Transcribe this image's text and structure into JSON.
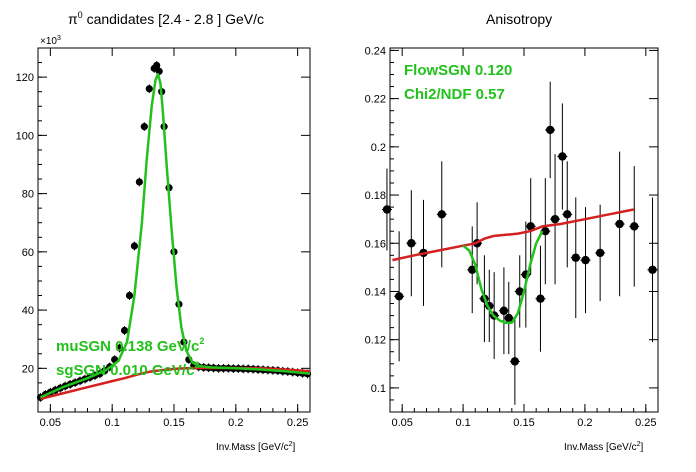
{
  "chart_data": [
    {
      "type": "scatter",
      "title_main": "π",
      "title_sup": "0",
      "title_rest": " candidates   [2.4 - 2.8 ] GeV/c",
      "xlabel": "Inv.Mass  [GeV/c",
      "xlabel_sup": "2",
      "xlabel_end": "]",
      "exponent_label": "×10",
      "exponent_sup": "3",
      "xlim": [
        0.04,
        0.26
      ],
      "ylim": [
        5,
        130
      ],
      "xticks": [
        0.05,
        0.1,
        0.15,
        0.2,
        0.25
      ],
      "xtick_labels": [
        "0.05",
        "0.1",
        "0.15",
        "0.2",
        "0.25"
      ],
      "yticks": [
        20,
        40,
        60,
        80,
        100,
        120
      ],
      "ytick_labels": [
        "20",
        "40",
        "60",
        "80",
        "100",
        "120"
      ],
      "series": [
        {
          "x": [
            0.042,
            0.046,
            0.05,
            0.054,
            0.058,
            0.062,
            0.066,
            0.07,
            0.074,
            0.078,
            0.082,
            0.086,
            0.09,
            0.094,
            0.098,
            0.102,
            0.106,
            0.11,
            0.114,
            0.118,
            0.122,
            0.126,
            0.13,
            0.134,
            0.136,
            0.138,
            0.14,
            0.142,
            0.146,
            0.15,
            0.154,
            0.158,
            0.162,
            0.166,
            0.17,
            0.174,
            0.178,
            0.182,
            0.186,
            0.19,
            0.194,
            0.198,
            0.202,
            0.206,
            0.21,
            0.214,
            0.218,
            0.222,
            0.226,
            0.23,
            0.234,
            0.238,
            0.242,
            0.246,
            0.25,
            0.254,
            0.258
          ],
          "y": [
            10,
            11,
            11.8,
            12.5,
            13.2,
            13.9,
            14.5,
            15.1,
            15.7,
            16.3,
            16.9,
            17.5,
            18.1,
            19.2,
            20.5,
            23,
            27,
            33,
            45,
            62,
            84,
            103,
            116,
            123,
            124,
            122,
            115,
            103,
            82,
            60,
            42,
            29,
            23,
            21,
            20.5,
            20.3,
            20.2,
            20.1,
            20,
            20,
            20,
            19.9,
            19.9,
            19.8,
            19.8,
            19.7,
            19.6,
            19.5,
            19.4,
            19.3,
            19.2,
            19,
            18.9,
            18.7,
            18.5,
            18.3,
            18.1
          ]
        }
      ],
      "fit_lines": [
        {
          "color": "#22c11c",
          "x": [
            0.042,
            0.06,
            0.08,
            0.095,
            0.105,
            0.112,
            0.118,
            0.124,
            0.128,
            0.132,
            0.135,
            0.137,
            0.139,
            0.141,
            0.144,
            0.148,
            0.152,
            0.156,
            0.16,
            0.165,
            0.17,
            0.18,
            0.2,
            0.22,
            0.24,
            0.26
          ],
          "y": [
            10,
            13.5,
            16.6,
            19.4,
            22.5,
            29,
            45,
            70,
            92,
            110,
            119,
            121,
            118,
            108,
            90,
            68,
            48,
            34,
            26,
            22,
            20.8,
            20.3,
            20,
            19.6,
            19,
            18.2
          ]
        },
        {
          "color": "#d42020",
          "x": [
            0.042,
            0.06,
            0.08,
            0.1,
            0.11,
            0.12,
            0.13,
            0.14,
            0.15,
            0.16,
            0.17,
            0.18,
            0.2,
            0.22,
            0.24,
            0.26
          ],
          "y": [
            9.5,
            11.4,
            13.5,
            15.6,
            16.6,
            17.8,
            18.8,
            19.4,
            19.8,
            20,
            20.1,
            20.1,
            20.1,
            20,
            19.6,
            19
          ]
        }
      ],
      "annotations": [
        {
          "label": "muSGN  0.138 GeV/c",
          "sup": "2"
        },
        {
          "label": "sgSGN  0.010 GeV/c",
          "sup": "2"
        }
      ]
    },
    {
      "type": "scatter",
      "title": "Anisotropy",
      "xlabel": "Inv.Mass  [GeV/c",
      "xlabel_sup": "2",
      "xlabel_end": "]",
      "xlim": [
        0.04,
        0.26
      ],
      "ylim": [
        0.09,
        0.241
      ],
      "xticks": [
        0.05,
        0.1,
        0.15,
        0.2,
        0.25
      ],
      "xtick_labels": [
        "0.05",
        "0.1",
        "0.15",
        "0.2",
        "0.25"
      ],
      "yticks": [
        0.1,
        0.12,
        0.14,
        0.16,
        0.18,
        0.2,
        0.22,
        0.24
      ],
      "ytick_labels": [
        "0.1",
        "0.12",
        "0.14",
        "0.16",
        "0.18",
        "0.2",
        "0.22",
        "0.24"
      ],
      "series": [
        {
          "x": [
            0.038,
            0.046,
            0.054,
            0.062,
            0.07,
            0.078,
            0.086,
            0.094,
            0.102,
            0.11,
            0.118,
            0.126,
            0.134,
            0.142,
            0.15,
            0.158,
            0.166,
            0.174,
            0.182,
            0.19,
            0.198,
            0.206,
            0.214,
            0.222,
            0.23,
            0.238,
            0.246,
            0.254
          ],
          "x_note": "",
          "xs": [
            0.038,
            0.0575,
            0.0675,
            0.0815,
            0.0875,
            0.0965,
            0.0885,
            0.1055,
            0.1135,
            0.1185,
            0.1235,
            0.1275,
            0.1325,
            0.1365,
            0.1405,
            0.1445,
            0.1485,
            0.1525,
            0.1565,
            0.1605,
            0.1665,
            0.1715,
            0.1765,
            0.1815,
            0.1865,
            0.1925,
            0.1975,
            0.2025
          ],
          "y_all": [],
          "points": [
            [
              0.0375,
              0.174,
              0.017
            ],
            [
              0.0475,
              0.138,
              0.027
            ],
            [
              0.0575,
              0.16,
              0.022
            ],
            [
              0.0675,
              0.156,
              0.022
            ],
            [
              0.0825,
              0.172,
              0.022
            ],
            [
              0.1075,
              0.149,
              0.018
            ],
            [
              0.1115,
              0.16,
              0.017
            ],
            [
              0.1175,
              0.137,
              0.018
            ],
            [
              0.1215,
              0.134,
              0.015
            ],
            [
              0.1255,
              0.13,
              0.018
            ],
            [
              0.1335,
              0.132,
              0.018
            ],
            [
              0.1375,
              0.129,
              0.015
            ],
            [
              0.1425,
              0.111,
              0.018
            ],
            [
              0.1465,
              0.14,
              0.015
            ],
            [
              0.1515,
              0.147,
              0.022
            ],
            [
              0.1555,
              0.167,
              0.02
            ],
            [
              0.1635,
              0.137,
              0.022
            ],
            [
              0.1675,
              0.165,
              0.022
            ],
            [
              0.1715,
              0.207,
              0.02
            ],
            [
              0.1755,
              0.17,
              0.027
            ],
            [
              0.1815,
              0.196,
              0.022
            ],
            [
              0.1855,
              0.172,
              0.022
            ],
            [
              0.1925,
              0.154,
              0.025
            ],
            [
              0.2005,
              0.153,
              0.022
            ],
            [
              0.2125,
              0.156,
              0.02
            ],
            [
              0.2285,
              0.168,
              0.03
            ],
            [
              0.2405,
              0.167,
              0.025
            ],
            [
              0.2555,
              0.149,
              0.03
            ]
          ]
        }
      ],
      "fit_lines": [
        {
          "color": "#d42020",
          "x": [
            0.042,
            0.06,
            0.08,
            0.1,
            0.11,
            0.118,
            0.125,
            0.135,
            0.145,
            0.155,
            0.165,
            0.18,
            0.2,
            0.22,
            0.24
          ],
          "y": [
            0.153,
            0.155,
            0.157,
            0.159,
            0.16,
            0.162,
            0.163,
            0.1635,
            0.164,
            0.165,
            0.167,
            0.168,
            0.17,
            0.172,
            0.174
          ]
        },
        {
          "color": "#22c11c",
          "x": [
            0.1,
            0.105,
            0.11,
            0.115,
            0.12,
            0.125,
            0.13,
            0.135,
            0.14,
            0.145,
            0.15,
            0.155,
            0.16,
            0.165
          ],
          "y": [
            0.159,
            0.157,
            0.151,
            0.141,
            0.134,
            0.13,
            0.128,
            0.127,
            0.127,
            0.131,
            0.14,
            0.151,
            0.16,
            0.165
          ]
        }
      ],
      "annotations": [
        {
          "label": "FlowSGN  0.120"
        },
        {
          "label": "Chi2/NDF  0.57"
        }
      ]
    }
  ]
}
